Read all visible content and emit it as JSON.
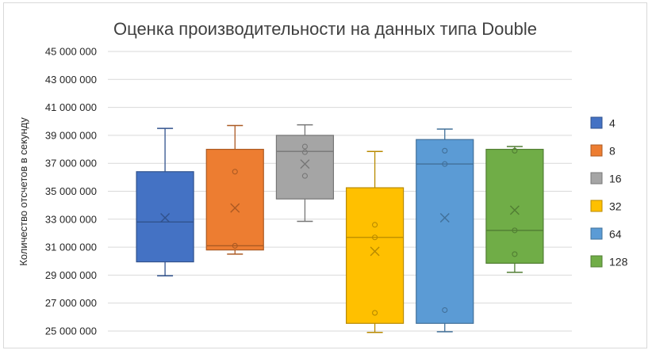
{
  "chart_data": {
    "type": "box",
    "title": "Оценка производительности на данных типа Double",
    "xlabel": "",
    "ylabel": "Количество отсчетов в секунду",
    "ylim": [
      25000000,
      45000000
    ],
    "yticks": [
      25000000,
      27000000,
      29000000,
      31000000,
      33000000,
      35000000,
      37000000,
      39000000,
      41000000,
      43000000,
      45000000
    ],
    "ytick_labels": [
      "25 000 000",
      "27 000 000",
      "29 000 000",
      "31 000 000",
      "33 000 000",
      "35 000 000",
      "37 000 000",
      "39 000 000",
      "41 000 000",
      "43 000 000",
      "45 000 000"
    ],
    "grid": true,
    "legend_position": "right",
    "series": [
      {
        "name": "4",
        "color": "#4472c4",
        "whisker_low": 28950000,
        "q1": 29950000,
        "median": 32800000,
        "q3": 36400000,
        "whisker_high": 39500000,
        "mean": 33100000,
        "points": []
      },
      {
        "name": "8",
        "color": "#ed7d31",
        "whisker_low": 30500000,
        "q1": 30800000,
        "median": 31100000,
        "q3": 38000000,
        "whisker_high": 39700000,
        "mean": 33800000,
        "points": [
          36400000,
          31100000
        ]
      },
      {
        "name": "16",
        "color": "#a5a5a5",
        "whisker_low": 32850000,
        "q1": 34450000,
        "median": 37850000,
        "q3": 39000000,
        "whisker_high": 39750000,
        "mean": 36950000,
        "points": [
          38200000,
          37800000,
          36100000
        ]
      },
      {
        "name": "32",
        "color": "#ffc000",
        "whisker_low": 24900000,
        "q1": 25550000,
        "median": 31700000,
        "q3": 35250000,
        "whisker_high": 37850000,
        "mean": 30700000,
        "points": [
          32600000,
          31700000,
          26300000
        ]
      },
      {
        "name": "64",
        "color": "#5b9bd5",
        "whisker_low": 24950000,
        "q1": 25550000,
        "median": 36950000,
        "q3": 38700000,
        "whisker_high": 39450000,
        "mean": 33100000,
        "points": [
          37900000,
          36950000,
          26500000
        ]
      },
      {
        "name": "128",
        "color": "#70ad47",
        "whisker_low": 29200000,
        "q1": 29850000,
        "median": 32200000,
        "q3": 38000000,
        "whisker_high": 38200000,
        "mean": 33650000,
        "points": [
          37900000,
          32200000,
          30500000
        ]
      }
    ]
  }
}
